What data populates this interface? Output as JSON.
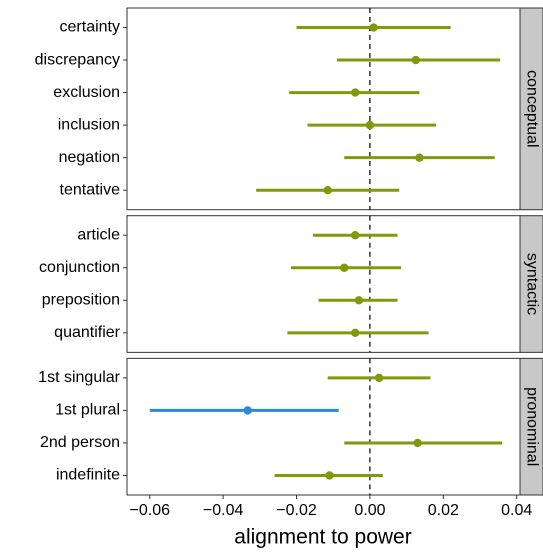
{
  "chart_data": {
    "type": "forest",
    "xlabel": "alignment to power",
    "xlim": [
      -0.0662,
      0.0409
    ],
    "xticks": [
      {
        "value": -0.06,
        "label": "−0.06"
      },
      {
        "value": -0.04,
        "label": "−0.04"
      },
      {
        "value": -0.02,
        "label": "−0.02"
      },
      {
        "value": 0,
        "label": "0.00"
      },
      {
        "value": 0.02,
        "label": "0.02"
      },
      {
        "value": 0.04,
        "label": "0.04"
      }
    ],
    "reference_line": 0,
    "panels": [
      {
        "label": "conceptual",
        "categories": [
          "certainty",
          "discrepancy",
          "exclusion",
          "inclusion",
          "negation",
          "tentative"
        ],
        "values": [
          0.001,
          0.0125,
          -0.004,
          0.0,
          0.0135,
          -0.0115
        ],
        "lower": [
          -0.02,
          -0.009,
          -0.022,
          -0.017,
          -0.007,
          -0.031
        ],
        "upper": [
          0.022,
          0.0355,
          0.0135,
          0.018,
          0.034,
          0.008
        ],
        "colors": [
          "#7f9a0b",
          "#7f9a0b",
          "#7f9a0b",
          "#7f9a0b",
          "#7f9a0b",
          "#7f9a0b"
        ]
      },
      {
        "label": "syntactic",
        "categories": [
          "article",
          "conjunction",
          "preposition",
          "quantifier"
        ],
        "values": [
          -0.004,
          -0.007,
          -0.003,
          -0.004
        ],
        "lower": [
          -0.0155,
          -0.0215,
          -0.014,
          -0.0225
        ],
        "upper": [
          0.0075,
          0.0085,
          0.0075,
          0.016
        ],
        "colors": [
          "#7f9a0b",
          "#7f9a0b",
          "#7f9a0b",
          "#7f9a0b"
        ]
      },
      {
        "label": "pronominal",
        "categories": [
          "1st singular",
          "1st plural",
          "2nd person",
          "indefinite"
        ],
        "values": [
          0.0025,
          -0.0333,
          0.013,
          -0.011
        ],
        "lower": [
          -0.0115,
          -0.06,
          -0.007,
          -0.026
        ],
        "upper": [
          0.0165,
          -0.0085,
          0.036,
          0.0035
        ],
        "colors": [
          "#7f9a0b",
          "#2b8ad8",
          "#7f9a0b",
          "#7f9a0b"
        ]
      }
    ]
  }
}
